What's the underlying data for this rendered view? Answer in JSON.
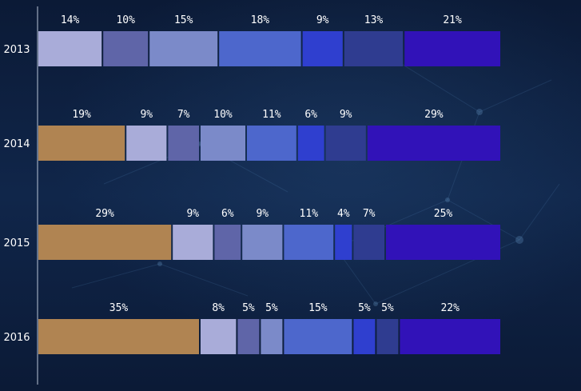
{
  "chart_data": {
    "type": "bar",
    "orientation": "horizontal",
    "stacked": true,
    "categories": [
      "2013",
      "2014",
      "2015",
      "2016"
    ],
    "segment_colors": [
      "#b08452",
      "#a9acd9",
      "#5f65a8",
      "#7b8ac9",
      "#4d67cc",
      "#2f3fcf",
      "#2f3c90",
      "#3112b8"
    ],
    "values": [
      [
        0,
        14,
        10,
        15,
        18,
        9,
        13,
        21
      ],
      [
        19,
        9,
        7,
        10,
        11,
        6,
        9,
        29
      ],
      [
        29,
        9,
        6,
        9,
        11,
        4,
        7,
        25
      ],
      [
        35,
        8,
        5,
        5,
        15,
        5,
        5,
        22
      ]
    ],
    "labels": [
      [
        "14%",
        "10%",
        "15%",
        "18%",
        "9%",
        "13%",
        "21%"
      ],
      [
        "19%",
        "9%",
        "7%",
        "10%",
        "11%",
        "6%",
        "9%",
        "29%"
      ],
      [
        "29%",
        "9%",
        "6%",
        "9%",
        "11%",
        "4%",
        "7%",
        "25%"
      ],
      [
        "35%",
        "8%",
        "5%",
        "5%",
        "15%",
        "5%",
        "5%",
        "22%"
      ]
    ],
    "title": "",
    "xlabel": "",
    "ylabel": "",
    "grid": false,
    "legend": "none"
  }
}
